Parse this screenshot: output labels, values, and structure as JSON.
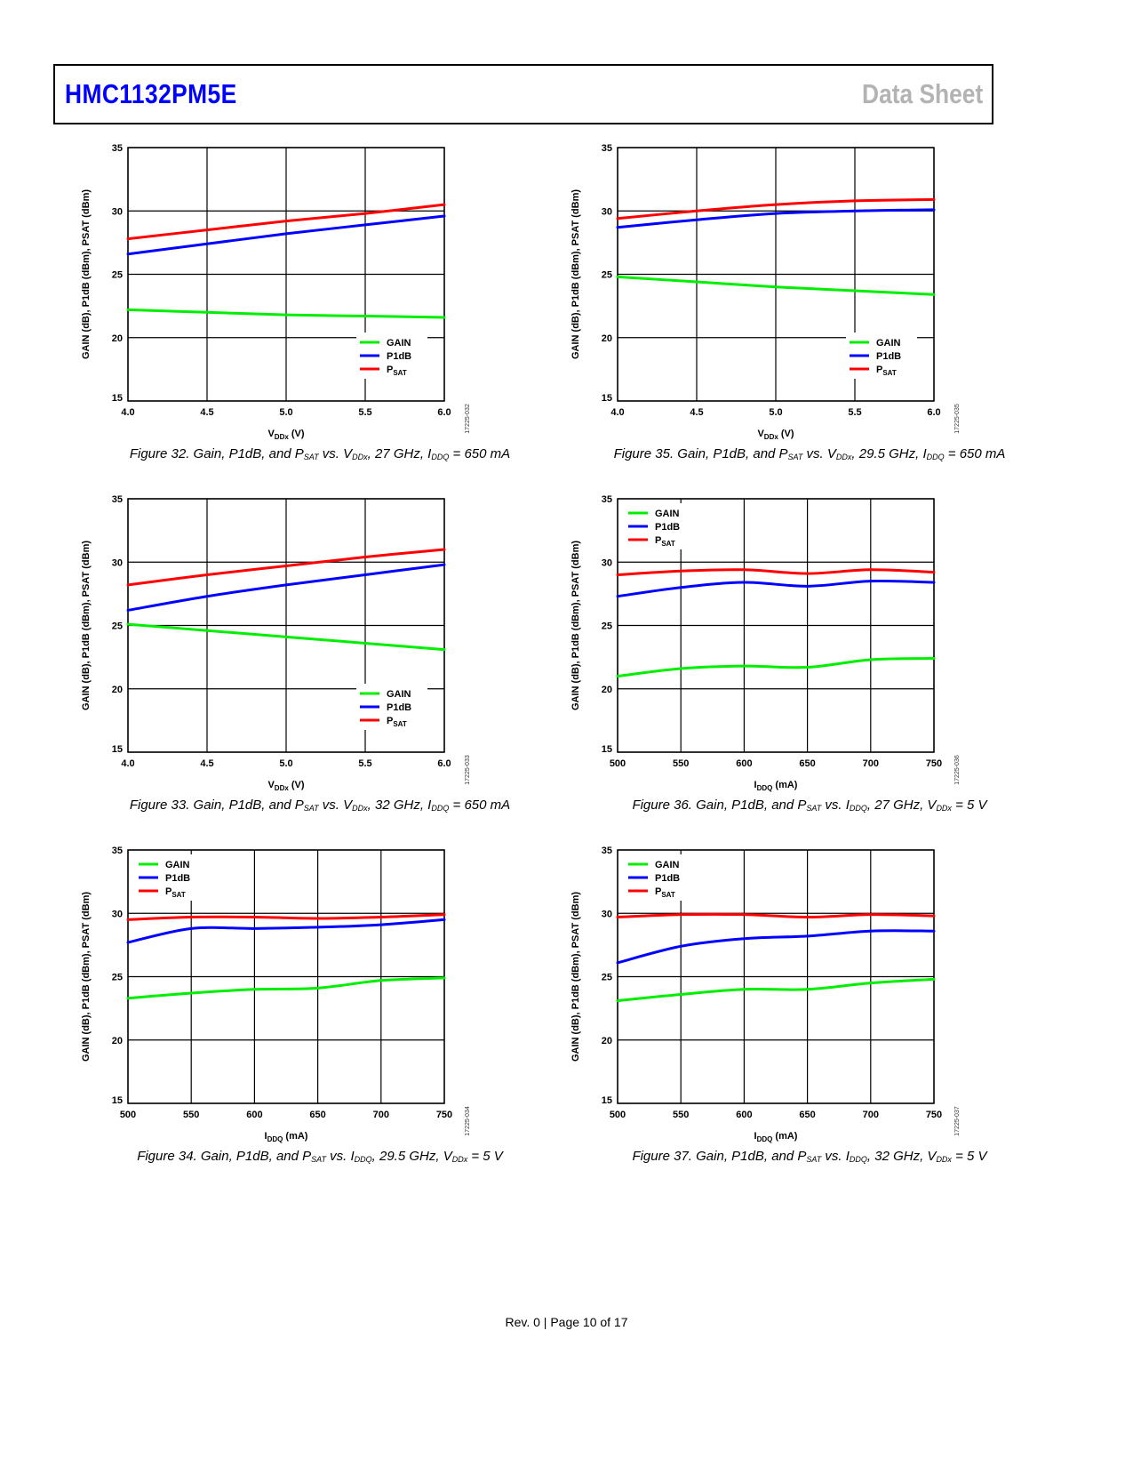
{
  "header": {
    "title": "HMC1132PM5E",
    "doc_type": "Data Sheet"
  },
  "footer": "Rev. 0 | Page 10 of 17",
  "colors": {
    "GAIN": "#00ee00",
    "P1dB": "#0000ff",
    "PSAT": "#ff0000"
  },
  "chart_data": [
    {
      "id": "fig32",
      "type": "line",
      "code": "17225-032",
      "col": 0,
      "row": 0,
      "legend": "bottom-right",
      "caption": [
        {
          "t": "Figure 32. Gain, P1dB, and P"
        },
        {
          "t": "SAT",
          "sub": true
        },
        {
          "t": " vs. V"
        },
        {
          "t": "DDx",
          "sub": true
        },
        {
          "t": ", 27 GHz, I"
        },
        {
          "t": "DDQ",
          "sub": true
        },
        {
          "t": " = 650 mA"
        }
      ],
      "xlabel": {
        "main": "V",
        "sub": "DDx",
        "unit": " (V)"
      },
      "ylabel": "GAIN (dB), P1dB (dBm), PSAT (dBm)",
      "xticks": [
        "4.0",
        "4.5",
        "5.0",
        "5.5",
        "6.0"
      ],
      "x": [
        4.0,
        4.5,
        5.0,
        5.5,
        6.0
      ],
      "xlim": [
        4.0,
        6.0
      ],
      "yticks": [
        "15",
        "20",
        "25",
        "30",
        "35"
      ],
      "ylim": [
        15,
        35
      ],
      "series": [
        {
          "name": "GAIN",
          "values": [
            22.2,
            22.0,
            21.8,
            21.7,
            21.6
          ]
        },
        {
          "name": "P1dB",
          "values": [
            26.6,
            27.4,
            28.2,
            28.9,
            29.6
          ]
        },
        {
          "name": "PSAT",
          "values": [
            27.8,
            28.5,
            29.2,
            29.8,
            30.5
          ]
        }
      ]
    },
    {
      "id": "fig35",
      "type": "line",
      "code": "17225-035",
      "col": 1,
      "row": 0,
      "legend": "bottom-right",
      "caption": [
        {
          "t": "Figure 35. Gain, P1dB, and P"
        },
        {
          "t": "SAT",
          "sub": true
        },
        {
          "t": " vs. V"
        },
        {
          "t": "DDx",
          "sub": true
        },
        {
          "t": ", 29.5 GHz, I"
        },
        {
          "t": "DDQ",
          "sub": true
        },
        {
          "t": " = 650 mA"
        }
      ],
      "xlabel": {
        "main": "V",
        "sub": "DDx",
        "unit": " (V)"
      },
      "ylabel": "GAIN (dB), P1dB (dBm), PSAT (dBm)",
      "xticks": [
        "4.0",
        "4.5",
        "5.0",
        "5.5",
        "6.0"
      ],
      "x": [
        4.0,
        4.5,
        5.0,
        5.5,
        6.0
      ],
      "xlim": [
        4.0,
        6.0
      ],
      "yticks": [
        "15",
        "20",
        "25",
        "30",
        "35"
      ],
      "ylim": [
        15,
        35
      ],
      "series": [
        {
          "name": "GAIN",
          "values": [
            24.8,
            24.4,
            24.0,
            23.7,
            23.4
          ]
        },
        {
          "name": "P1dB",
          "values": [
            28.7,
            29.3,
            29.8,
            30.0,
            30.1
          ]
        },
        {
          "name": "PSAT",
          "values": [
            29.4,
            30.0,
            30.5,
            30.8,
            30.9
          ]
        }
      ]
    },
    {
      "id": "fig33",
      "type": "line",
      "code": "17225-033",
      "col": 0,
      "row": 1,
      "legend": "bottom-right",
      "caption": [
        {
          "t": "Figure 33. Gain, P1dB, and P"
        },
        {
          "t": "SAT",
          "sub": true
        },
        {
          "t": " vs. V"
        },
        {
          "t": "DDx",
          "sub": true
        },
        {
          "t": ", 32 GHz, I"
        },
        {
          "t": "DDQ",
          "sub": true
        },
        {
          "t": " = 650 mA"
        }
      ],
      "xlabel": {
        "main": "V",
        "sub": "DDx",
        "unit": " (V)"
      },
      "ylabel": "GAIN (dB), P1dB (dBm), PSAT (dBm)",
      "xticks": [
        "4.0",
        "4.5",
        "5.0",
        "5.5",
        "6.0"
      ],
      "x": [
        4.0,
        4.5,
        5.0,
        5.5,
        6.0
      ],
      "xlim": [
        4.0,
        6.0
      ],
      "yticks": [
        "15",
        "20",
        "25",
        "30",
        "35"
      ],
      "ylim": [
        15,
        35
      ],
      "series": [
        {
          "name": "GAIN",
          "values": [
            25.1,
            24.6,
            24.1,
            23.6,
            23.1
          ]
        },
        {
          "name": "P1dB",
          "values": [
            26.2,
            27.3,
            28.2,
            29.0,
            29.8
          ]
        },
        {
          "name": "PSAT",
          "values": [
            28.2,
            29.0,
            29.7,
            30.4,
            31.0
          ]
        }
      ]
    },
    {
      "id": "fig36",
      "type": "line",
      "code": "17225-036",
      "col": 1,
      "row": 1,
      "legend": "top-left",
      "caption": [
        {
          "t": "Figure 36. Gain, P1dB, and P"
        },
        {
          "t": "SAT",
          "sub": true
        },
        {
          "t": " vs. I"
        },
        {
          "t": "DDQ",
          "sub": true
        },
        {
          "t": ", 27 GHz, V"
        },
        {
          "t": "DDx",
          "sub": true
        },
        {
          "t": " = 5 V"
        }
      ],
      "xlabel": {
        "main": "I",
        "sub": "DDQ",
        "unit": " (mA)"
      },
      "ylabel": "GAIN (dB), P1dB (dBm), PSAT (dBm)",
      "xticks": [
        "500",
        "550",
        "600",
        "650",
        "700",
        "750"
      ],
      "x": [
        500,
        550,
        600,
        650,
        700,
        750
      ],
      "xlim": [
        500,
        750
      ],
      "yticks": [
        "15",
        "20",
        "25",
        "30",
        "35"
      ],
      "ylim": [
        15,
        35
      ],
      "series": [
        {
          "name": "GAIN",
          "values": [
            21.0,
            21.6,
            21.8,
            21.7,
            22.3,
            22.4
          ]
        },
        {
          "name": "P1dB",
          "values": [
            27.3,
            28.0,
            28.4,
            28.1,
            28.5,
            28.4
          ]
        },
        {
          "name": "PSAT",
          "values": [
            29.0,
            29.3,
            29.4,
            29.1,
            29.4,
            29.2
          ]
        }
      ]
    },
    {
      "id": "fig34",
      "type": "line",
      "code": "17225-034",
      "col": 0,
      "row": 2,
      "legend": "top-left",
      "caption": [
        {
          "t": "Figure 34. Gain, P1dB, and P"
        },
        {
          "t": "SAT",
          "sub": true
        },
        {
          "t": " vs. I"
        },
        {
          "t": "DDQ",
          "sub": true
        },
        {
          "t": ", 29.5 GHz, V"
        },
        {
          "t": "DDx",
          "sub": true
        },
        {
          "t": " = 5 V"
        }
      ],
      "xlabel": {
        "main": "I",
        "sub": "DDQ",
        "unit": " (mA)"
      },
      "ylabel": "GAIN (dB), P1dB (dBm), PSAT (dBm)",
      "xticks": [
        "500",
        "550",
        "600",
        "650",
        "700",
        "750"
      ],
      "x": [
        500,
        550,
        600,
        650,
        700,
        750
      ],
      "xlim": [
        500,
        750
      ],
      "yticks": [
        "15",
        "20",
        "25",
        "30",
        "35"
      ],
      "ylim": [
        15,
        35
      ],
      "series": [
        {
          "name": "GAIN",
          "values": [
            23.3,
            23.7,
            24.0,
            24.1,
            24.7,
            24.9
          ]
        },
        {
          "name": "P1dB",
          "values": [
            27.7,
            28.8,
            28.8,
            28.9,
            29.1,
            29.5
          ]
        },
        {
          "name": "PSAT",
          "values": [
            29.5,
            29.7,
            29.7,
            29.6,
            29.7,
            29.9
          ]
        }
      ]
    },
    {
      "id": "fig37",
      "type": "line",
      "code": "17225-037",
      "col": 1,
      "row": 2,
      "legend": "top-left",
      "caption": [
        {
          "t": "Figure 37. Gain, P1dB, and P"
        },
        {
          "t": "SAT",
          "sub": true
        },
        {
          "t": " vs. I"
        },
        {
          "t": "DDQ",
          "sub": true
        },
        {
          "t": ", 32 GHz, V"
        },
        {
          "t": "DDx",
          "sub": true
        },
        {
          "t": " = 5 V"
        }
      ],
      "xlabel": {
        "main": "I",
        "sub": "DDQ",
        "unit": " (mA)"
      },
      "ylabel": "GAIN (dB), P1dB (dBm), PSAT (dBm)",
      "xticks": [
        "500",
        "550",
        "600",
        "650",
        "700",
        "750"
      ],
      "x": [
        500,
        550,
        600,
        650,
        700,
        750
      ],
      "xlim": [
        500,
        750
      ],
      "yticks": [
        "15",
        "20",
        "25",
        "30",
        "35"
      ],
      "ylim": [
        15,
        35
      ],
      "series": [
        {
          "name": "GAIN",
          "values": [
            23.1,
            23.6,
            24.0,
            24.0,
            24.5,
            24.8
          ]
        },
        {
          "name": "P1dB",
          "values": [
            26.1,
            27.4,
            28.0,
            28.2,
            28.6,
            28.6
          ]
        },
        {
          "name": "PSAT",
          "values": [
            29.7,
            29.9,
            29.9,
            29.7,
            29.9,
            29.8
          ]
        }
      ]
    }
  ]
}
